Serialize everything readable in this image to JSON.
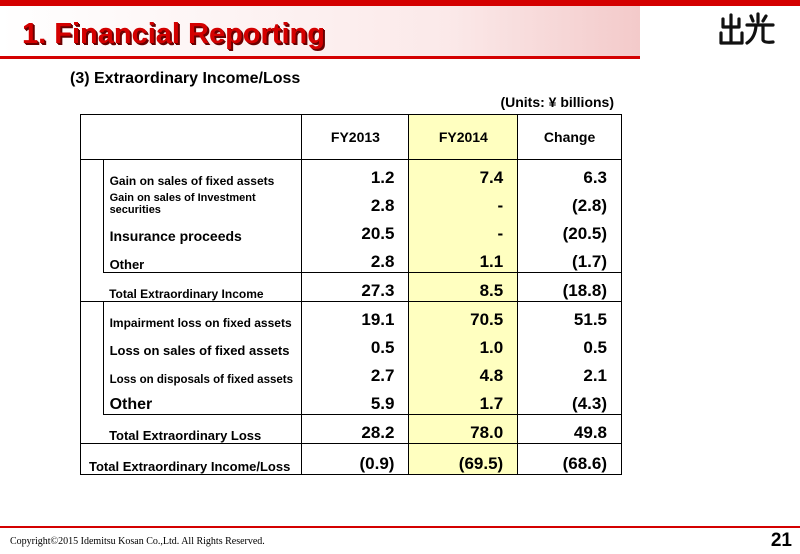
{
  "header": {
    "title": "1. Financial Reporting",
    "logo_text": "出光",
    "accent_color": "#d40000"
  },
  "section": {
    "subtitle": "(3) Extraordinary Income/Loss",
    "units": "(Units: ¥ billions)"
  },
  "table": {
    "columns": [
      "FY2013",
      "FY2014",
      "Change"
    ],
    "highlight_color": "#ffffc0",
    "income_rows": [
      {
        "label": "Gain on sales of fixed assets",
        "fy2013": "1.2",
        "fy2014": "7.4",
        "change": "6.3"
      },
      {
        "label": "Gain on sales of Investment securities",
        "fy2013": "2.8",
        "fy2014": "-",
        "change": "(2.8)"
      },
      {
        "label": "Insurance proceeds",
        "fy2013": "20.5",
        "fy2014": "-",
        "change": "(20.5)"
      },
      {
        "label": "Other",
        "fy2013": "2.8",
        "fy2014": "1.1",
        "change": "(1.7)"
      }
    ],
    "income_total": {
      "label": "Total Extraordinary Income",
      "fy2013": "27.3",
      "fy2014": "8.5",
      "change": "(18.8)"
    },
    "loss_rows": [
      {
        "label": "Impairment loss on fixed assets",
        "fy2013": "19.1",
        "fy2014": "70.5",
        "change": "51.5"
      },
      {
        "label": "Loss on sales of fixed assets",
        "fy2013": "0.5",
        "fy2014": "1.0",
        "change": "0.5"
      },
      {
        "label": "Loss on disposals of fixed assets",
        "fy2013": "2.7",
        "fy2014": "4.8",
        "change": "2.1"
      },
      {
        "label": "Other",
        "fy2013": "5.9",
        "fy2014": "1.7",
        "change": "(4.3)"
      }
    ],
    "loss_total": {
      "label": "Total Extraordinary Loss",
      "fy2013": "28.2",
      "fy2014": "78.0",
      "change": "49.8"
    },
    "grand_total": {
      "label": "Total Extraordinary Income/Loss",
      "fy2013": "(0.9)",
      "fy2014": "(69.5)",
      "change": "(68.6)"
    }
  },
  "footer": {
    "copyright": "Copyright©2015 Idemitsu Kosan Co.,Ltd. All Rights Reserved.",
    "page_number": "21"
  }
}
